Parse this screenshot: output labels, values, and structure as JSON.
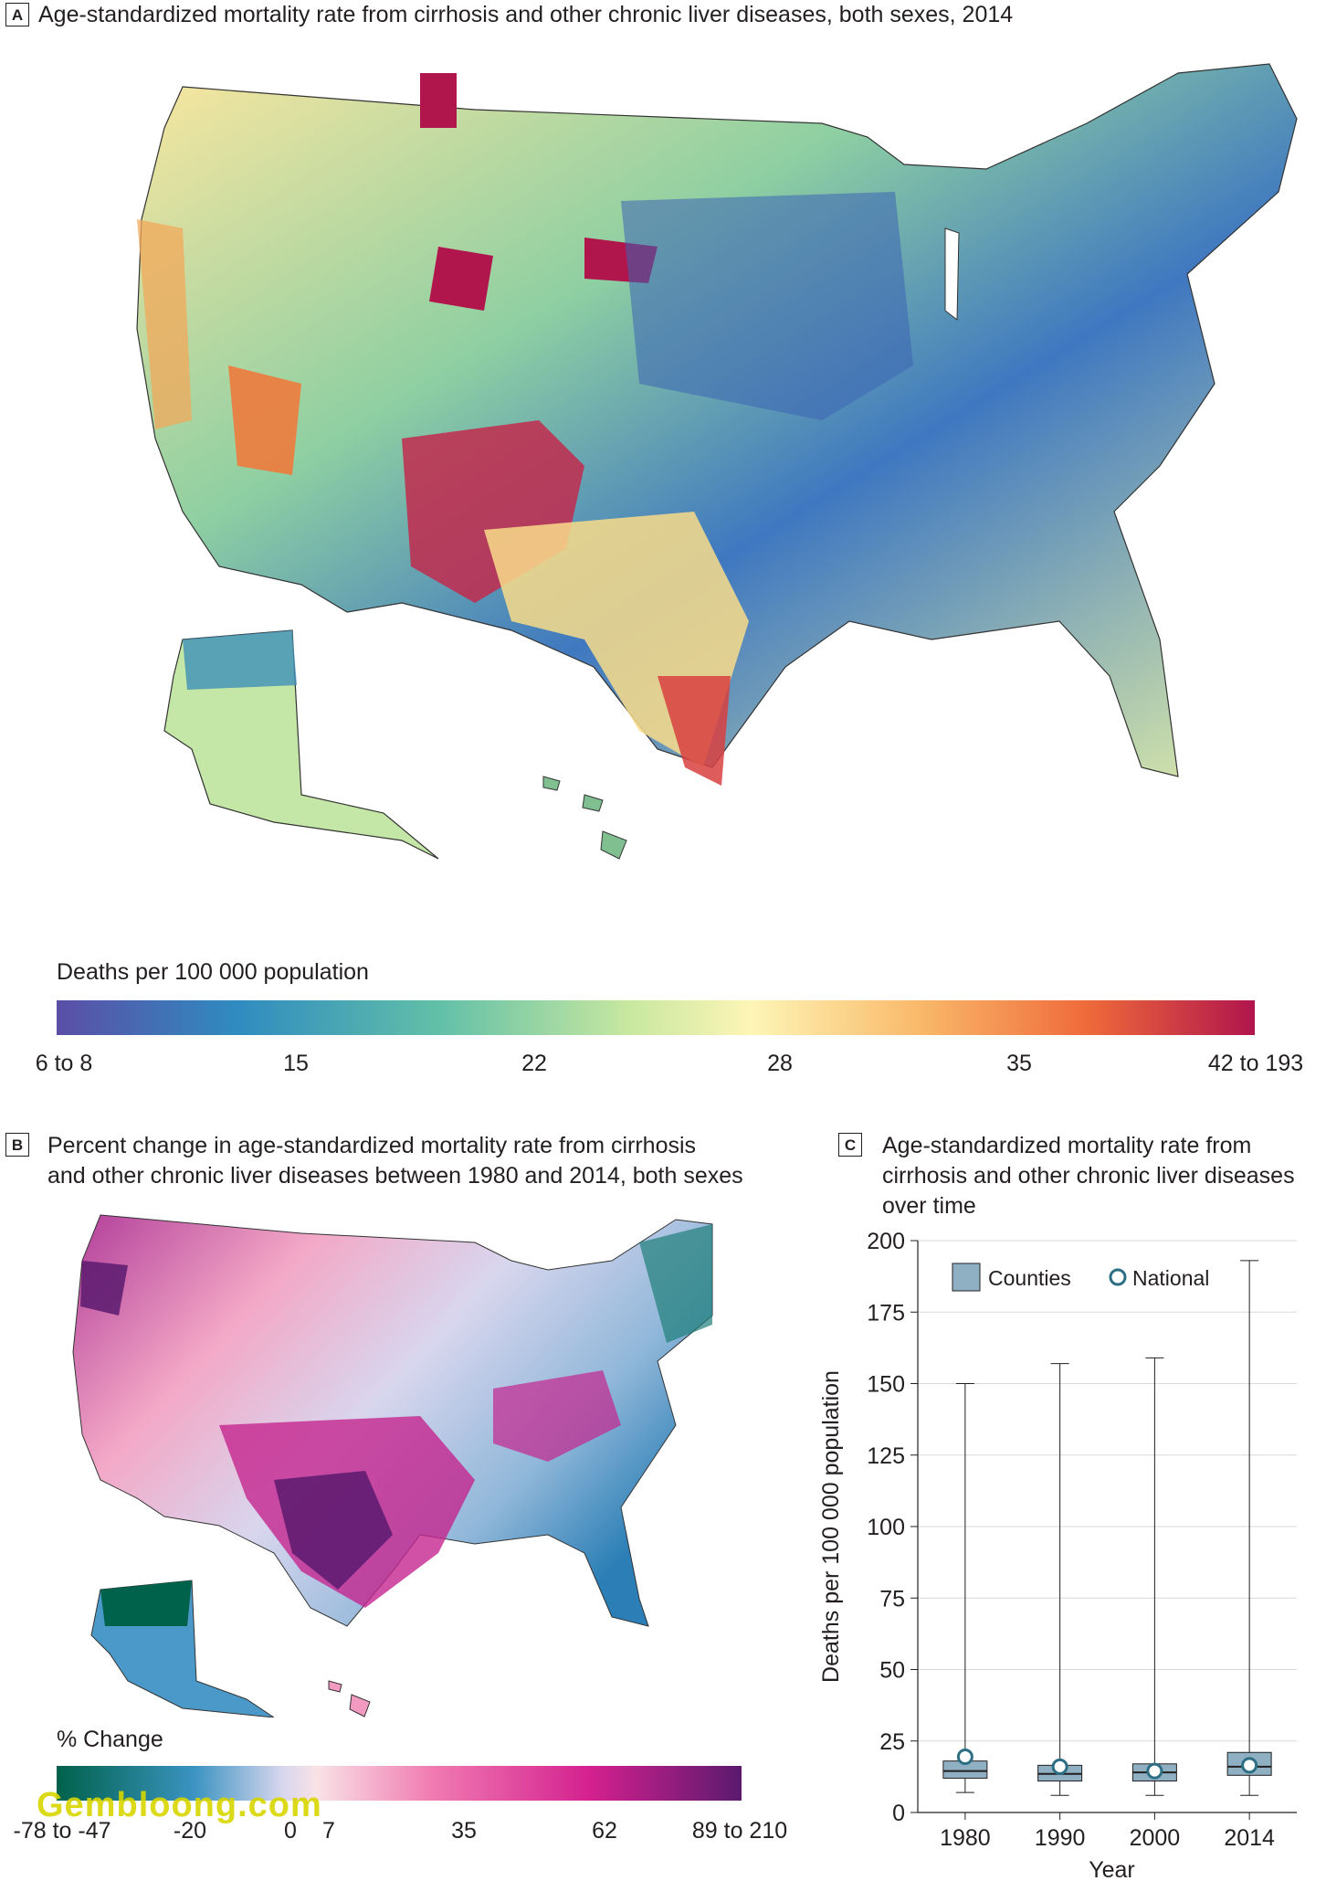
{
  "panel_a": {
    "badge": "A",
    "title": "Age-standardized mortality rate from cirrhosis and other chronic liver diseases, both sexes, 2014",
    "legend_title": "Deaths per 100 000 population",
    "ticks": [
      "6 to 8",
      "15",
      "22",
      "28",
      "35",
      "42 to 193"
    ],
    "colors": [
      "#5b4ea7",
      "#2f8bc0",
      "#62c0a8",
      "#c9e8a0",
      "#fdf5b6",
      "#f9b96a",
      "#ef6a3a",
      "#b0154c"
    ]
  },
  "panel_b": {
    "badge": "B",
    "title_line1": "Percent change in age-standardized mortality rate from cirrhosis",
    "title_line2": "and other chronic liver diseases between 1980 and 2014, both sexes",
    "legend_title": "% Change",
    "ticks": [
      "-78 to -47",
      "-20",
      "0",
      "7",
      "35",
      "62",
      "89 to 210"
    ],
    "colors": [
      "#00624a",
      "#3a93c1",
      "#d8d6ee",
      "#f9c6cf",
      "#f07ab1",
      "#d4208f",
      "#5a1a6e"
    ]
  },
  "panel_c": {
    "badge": "C",
    "title_line1": "Age-standardized mortality rate from",
    "title_line2": "cirrhosis and other chronic liver diseases",
    "title_line3": "over time",
    "legend_counties": "Counties",
    "legend_national": "National",
    "box_color": "#8fb0c2",
    "national_color": "#2c6e83"
  },
  "watermark": "Gembloong.com",
  "chart_data": {
    "type": "box",
    "title": "Age-standardized mortality rate from cirrhosis and other chronic liver diseases over time",
    "xlabel": "Year",
    "ylabel": "Deaths per 100 000 population",
    "ylim": [
      0,
      200
    ],
    "yticks": [
      0,
      25,
      50,
      75,
      100,
      125,
      150,
      175,
      200
    ],
    "categories": [
      "1980",
      "1990",
      "2000",
      "2014"
    ],
    "series": [
      {
        "name": "Counties",
        "min": [
          7,
          6,
          6,
          6
        ],
        "q1": [
          12,
          11,
          11,
          13
        ],
        "median": [
          14.5,
          13.5,
          14,
          16
        ],
        "q3": [
          18,
          16.5,
          17,
          21
        ],
        "max": [
          150,
          157,
          159,
          193
        ]
      },
      {
        "name": "National",
        "values": [
          19.5,
          16,
          14.5,
          16.5
        ]
      }
    ]
  }
}
